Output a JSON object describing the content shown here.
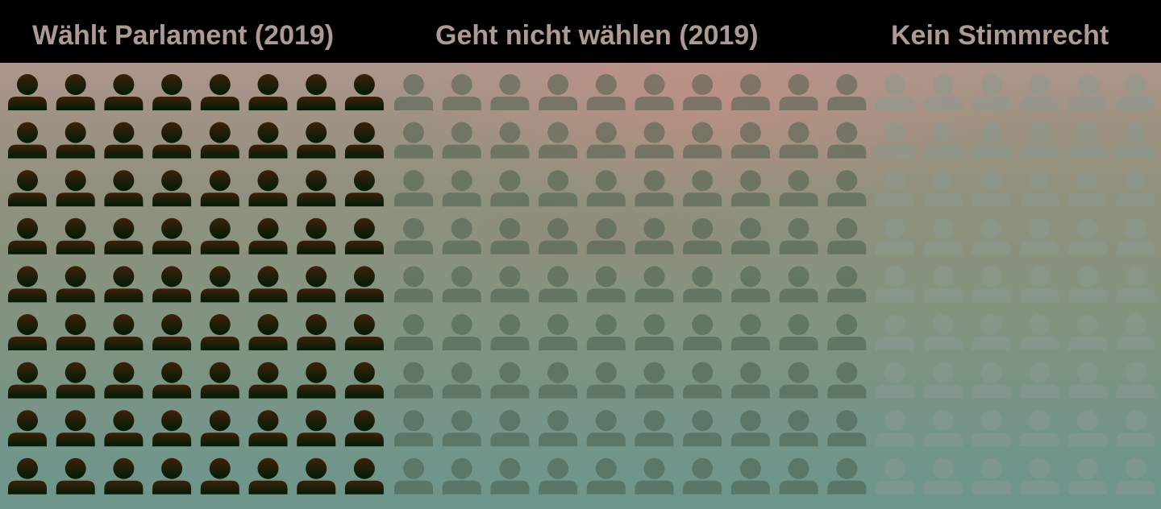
{
  "chart_data": {
    "type": "pictogram",
    "rows": 9,
    "categories": [
      "Wählt Parlament (2019)",
      "Geht nicht wählen (2019)",
      "Kein Stimmrecht"
    ],
    "values": [
      72,
      90,
      54
    ],
    "columns_per_category": [
      8,
      10,
      6
    ],
    "unit_icon": "person-icon",
    "colors": {
      "category_1_top": "#3e200a",
      "category_1_bottom": "#011c06",
      "category_2": "#445a48",
      "category_2_opacity": 0.5,
      "category_3": "#8a9a92",
      "category_3_opacity": 0.5,
      "header_text": "#ad9a93",
      "header_background": "#000000"
    }
  }
}
